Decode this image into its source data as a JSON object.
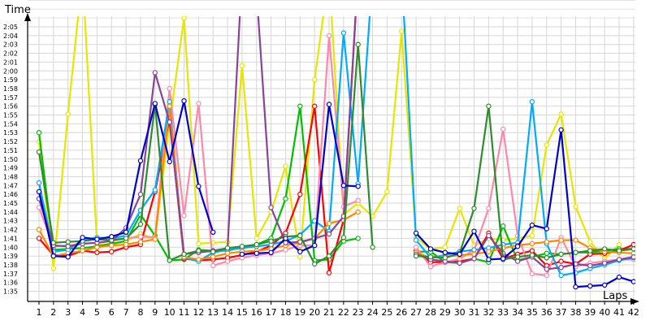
{
  "chart_data": {
    "type": "line",
    "ylabel": "Time",
    "xlabel": "Laps",
    "grid": true,
    "legend": "none",
    "x": [
      1,
      2,
      3,
      4,
      5,
      6,
      7,
      8,
      9,
      10,
      11,
      12,
      13,
      14,
      15,
      16,
      17,
      18,
      19,
      20,
      21,
      22,
      23,
      24,
      25,
      26,
      27,
      28,
      29,
      30,
      31,
      32,
      33,
      34,
      35,
      36,
      37,
      38,
      39,
      40,
      41,
      42
    ],
    "x_ticks": [
      "1",
      "2",
      "3",
      "4",
      "5",
      "6",
      "7",
      "8",
      "9",
      "10",
      "11",
      "12",
      "13",
      "14",
      "15",
      "16",
      "17",
      "18",
      "19",
      "20",
      "21",
      "22",
      "23",
      "24",
      "25",
      "26",
      "27",
      "28",
      "29",
      "30",
      "31",
      "32",
      "33",
      "34",
      "35",
      "36",
      "37",
      "38",
      "39",
      "40",
      "41",
      "42"
    ],
    "y_ticks": [
      {
        "v": 95,
        "t": "1:35"
      },
      {
        "v": 96,
        "t": "1:36"
      },
      {
        "v": 97,
        "t": "1:37"
      },
      {
        "v": 98,
        "t": "1:38"
      },
      {
        "v": 99,
        "t": "1:39"
      },
      {
        "v": 100,
        "t": "1:40"
      },
      {
        "v": 101,
        "t": "1:41"
      },
      {
        "v": 102,
        "t": "1:42"
      },
      {
        "v": 103,
        "t": "1:43"
      },
      {
        "v": 104,
        "t": "1:44"
      },
      {
        "v": 105,
        "t": "1:45"
      },
      {
        "v": 106,
        "t": "1:46"
      },
      {
        "v": 107,
        "t": "1:47"
      },
      {
        "v": 108,
        "t": "1:48"
      },
      {
        "v": 109,
        "t": "1:49"
      },
      {
        "v": 110,
        "t": "1:50"
      },
      {
        "v": 111,
        "t": "1:51"
      },
      {
        "v": 112,
        "t": "1:52"
      },
      {
        "v": 113,
        "t": "1:53"
      },
      {
        "v": 114,
        "t": "1:54"
      },
      {
        "v": 115,
        "t": "1:55"
      },
      {
        "v": 116,
        "t": "1:56"
      },
      {
        "v": 117,
        "t": "1:57"
      },
      {
        "v": 118,
        "t": "1:58"
      },
      {
        "v": 119,
        "t": "1:59"
      },
      {
        "v": 120,
        "t": "2:00"
      },
      {
        "v": 121,
        "t": "2:01"
      },
      {
        "v": 122,
        "t": "2:02"
      },
      {
        "v": 123,
        "t": "2:03"
      },
      {
        "v": 124,
        "t": "2:04"
      },
      {
        "v": 125,
        "t": "2:05"
      }
    ],
    "ylim": [
      94,
      130
    ],
    "series": [
      {
        "color": "#e6e600",
        "values": [
          112.0,
          97.6,
          115.1,
          131.0,
          100.3,
          100.3,
          100.7,
          101.5,
          101.0,
          114.0,
          126.0,
          100.4,
          100.5,
          100.6,
          120.6,
          101.0,
          104.0,
          109.2,
          98.9,
          119.0,
          131.0,
          103.7,
          105.0,
          103.5,
          106.3,
          124.5,
          101.1,
          99.8,
          100.0,
          104.4,
          100.2,
          101.0,
          100.8,
          101.0,
          101.3,
          111.6,
          115.1,
          104.6,
          100.6,
          98.7,
          100.3,
          null
        ]
      },
      {
        "color": "#00c000",
        "values": [
          113.0,
          99.7,
          99.8,
          99.9,
          100.1,
          100.4,
          100.7,
          103.7,
          101.3,
          98.5,
          98.6,
          99.7,
          99.6,
          99.6,
          100.0,
          100.3,
          101.0,
          105.5,
          116.0,
          98.5,
          98.6,
          100.7,
          101.0,
          null,
          null,
          null,
          99.5,
          99.5,
          98.3,
          98.2,
          98.7,
          98.3,
          102.4,
          98.5,
          98.9,
          99.3,
          99.2,
          99.4,
          99.4,
          99.6,
          99.8,
          99.8
        ]
      },
      {
        "color": "#ff0000",
        "values": [
          101.0,
          99.1,
          99.0,
          99.6,
          99.4,
          99.5,
          100.0,
          100.3,
          106.3,
          114.6,
          98.7,
          98.5,
          98.6,
          98.8,
          99.1,
          99.5,
          100.2,
          101.6,
          106.0,
          116.0,
          97.1,
          103.1,
          131.0,
          null,
          null,
          null,
          99.6,
          98.3,
          98.3,
          98.4,
          98.7,
          101.6,
          98.7,
          99.2,
          99.6,
          97.9,
          98.4,
          98.1,
          99.2,
          99.3,
          99.6,
          100.3
        ]
      },
      {
        "color": "#ff88aa",
        "values": [
          104.5,
          100.1,
          100.2,
          100.4,
          100.5,
          100.7,
          101.0,
          101.2,
          101.1,
          118.0,
          103.6,
          116.3,
          97.9,
          98.4,
          98.8,
          99.1,
          99.3,
          99.7,
          100.2,
          100.2,
          124.0,
          104.6,
          105.3,
          null,
          null,
          null,
          100.0,
          97.8,
          98.3,
          98.7,
          99.7,
          104.4,
          113.4,
          101.3,
          97.0,
          96.8,
          101.1,
          97.8,
          98.2,
          98.4,
          98.6,
          98.6
        ]
      },
      {
        "color": "#00aaff",
        "values": [
          107.3,
          99.5,
          99.7,
          100.8,
          101.1,
          101.0,
          101.3,
          104.2,
          106.5,
          116.5,
          98.8,
          98.4,
          99.4,
          99.7,
          99.9,
          100.1,
          100.3,
          100.7,
          101.4,
          103.0,
          101.8,
          124.3,
          107.2,
          131.0,
          null,
          131.0,
          100.8,
          98.8,
          99.1,
          99.5,
          99.7,
          99.9,
          100.3,
          100.5,
          116.5,
          100.4,
          96.8,
          97.1,
          97.6,
          98.0,
          98.5,
          98.8
        ]
      },
      {
        "color": "#ff8800",
        "values": [
          102.0,
          99.0,
          99.3,
          99.6,
          100.0,
          100.2,
          100.3,
          100.6,
          100.9,
          116.0,
          98.9,
          98.6,
          98.9,
          99.3,
          99.5,
          99.6,
          99.8,
          100.2,
          100.5,
          101.0,
          102.7,
          103.1,
          104.0,
          null,
          null,
          null,
          99.4,
          98.8,
          98.9,
          99.1,
          99.2,
          99.5,
          99.9,
          100.2,
          100.4,
          100.6,
          100.8,
          100.8,
          99.9,
          99.5,
          99.4,
          99.3
        ]
      },
      {
        "color": "#884499",
        "values": [
          105.5,
          100.2,
          100.1,
          100.4,
          100.5,
          100.7,
          102.2,
          106.0,
          119.8,
          114.2,
          99.2,
          99.4,
          99.6,
          99.9,
          131.0,
          129.0,
          104.5,
          100.5,
          100.6,
          101.0,
          101.5,
          103.5,
          131.0,
          null,
          null,
          null,
          99.2,
          98.6,
          98.4,
          98.2,
          98.7,
          101.3,
          99.3,
          98.4,
          98.9,
          97.5,
          97.7,
          98.1,
          97.9,
          98.2,
          98.6,
          98.9
        ]
      },
      {
        "color": "#2e8b2e",
        "values": [
          110.8,
          100.5,
          100.6,
          100.7,
          100.9,
          100.8,
          101.0,
          102.6,
          116.2,
          98.5,
          99.2,
          99.6,
          99.5,
          99.9,
          100.1,
          100.3,
          100.7,
          101.2,
          101.3,
          98.1,
          99.0,
          101.1,
          123.0,
          100.0,
          null,
          null,
          99.0,
          98.9,
          98.8,
          99.3,
          104.4,
          116.0,
          98.6,
          98.9,
          99.1,
          98.8,
          99.2,
          99.4,
          99.6,
          99.8,
          99.6,
          99.8
        ]
      },
      {
        "color": "#0000cc",
        "values": [
          106.3,
          99.0,
          98.9,
          101.1,
          100.9,
          101.2,
          101.7,
          109.8,
          116.3,
          109.7,
          116.6,
          106.9,
          101.7,
          null,
          99.2,
          99.3,
          99.4,
          101.0,
          99.5,
          100.2,
          116.2,
          107.0,
          106.9,
          null,
          null,
          null,
          101.6,
          99.8,
          99.4,
          99.2,
          101.8,
          98.6,
          98.7,
          100.1,
          102.5,
          102.1,
          113.3,
          95.5,
          95.6,
          95.7,
          96.6,
          96.1
        ]
      }
    ]
  }
}
